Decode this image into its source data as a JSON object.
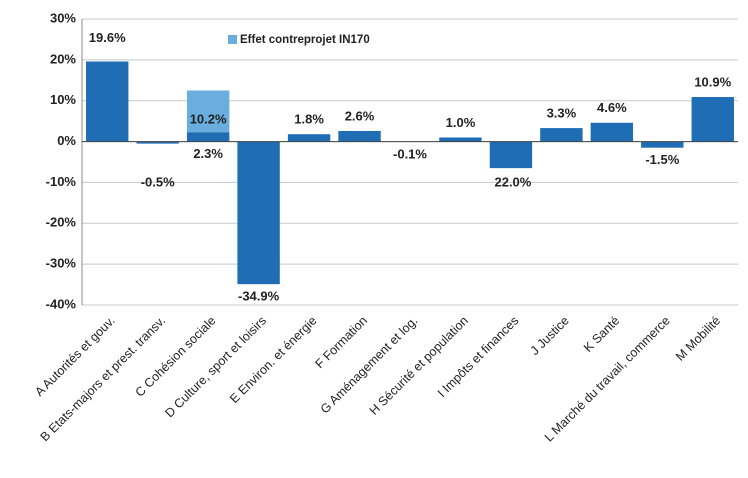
{
  "chart_data": {
    "type": "bar",
    "stacked": true,
    "categories": [
      "A Autorités et gouv.",
      "B Etats-majors et prest. transv.",
      "C Cohésion sociale",
      "D Culture, sport et loisirs",
      "E Environ. et énergie",
      "F Formation",
      "G Aménagement et log.",
      "H Sécurité et population",
      "I Impôts et finances",
      "J Justice",
      "K Santé",
      "L Marché du travail, commerce",
      "M Mobilité"
    ],
    "series": [
      {
        "color": "#1f6db5",
        "values": [
          19.6,
          -0.5,
          2.3,
          -34.9,
          1.8,
          2.6,
          -0.1,
          1.0,
          -6.5,
          3.3,
          4.6,
          -1.5,
          10.9
        ],
        "value_labels": [
          "19.6%",
          "-0.5%",
          "2.3%",
          "-34.9%",
          "1.8%",
          "2.6%",
          "-0.1%",
          "1.0%",
          null,
          "3.3%",
          "4.6%",
          "-1.5%",
          "10.9%"
        ]
      },
      {
        "name": "Effet contreprojet IN170",
        "color": "#6aaee0",
        "values": [
          null,
          null,
          10.2,
          null,
          null,
          null,
          null,
          null,
          null,
          null,
          null,
          null,
          null
        ],
        "value_labels": [
          null,
          null,
          "10.2%",
          null,
          null,
          null,
          null,
          null,
          null,
          null,
          null,
          null,
          null
        ]
      }
    ],
    "annotations": [
      "22.0%"
    ],
    "ylim": [
      -40,
      30
    ],
    "yticks": [
      {
        "value": -40,
        "label": "-40%"
      },
      {
        "value": -30,
        "label": "-30%"
      },
      {
        "value": -20,
        "label": "-20%"
      },
      {
        "value": -10,
        "label": "-10%"
      },
      {
        "value": 0,
        "label": "0%"
      },
      {
        "value": 10,
        "label": "10%"
      },
      {
        "value": 20,
        "label": "20%"
      },
      {
        "value": 30,
        "label": "30%"
      }
    ],
    "grid": true
  }
}
